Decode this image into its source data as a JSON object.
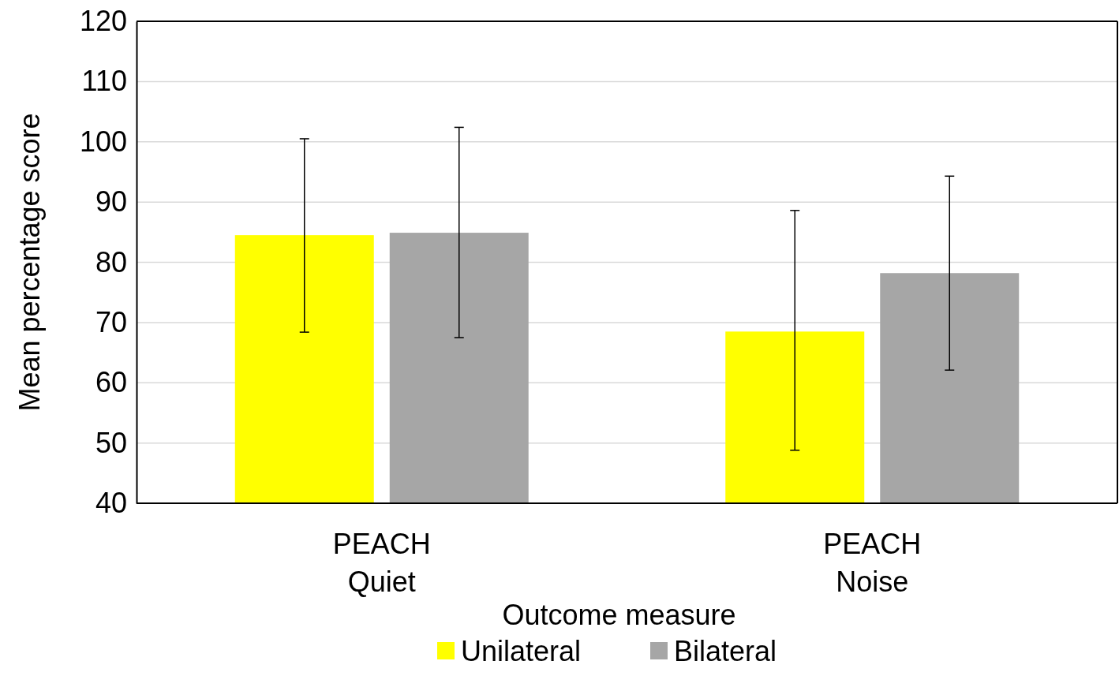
{
  "chart_data": {
    "type": "bar",
    "xlabel": "Outcome measure",
    "ylabel": "Mean percentage score",
    "categories": [
      "PEACH Quiet",
      "PEACH Noise"
    ],
    "series": [
      {
        "name": "Unilateral",
        "color": "#ffff00",
        "values": [
          84.5,
          68.5
        ],
        "errors": [
          [
            68.4,
            100.5
          ],
          [
            48.8,
            88.6
          ]
        ]
      },
      {
        "name": "Bilateral",
        "color": "#a6a6a6",
        "values": [
          84.9,
          78.2
        ],
        "errors": [
          [
            67.5,
            102.4
          ],
          [
            62.1,
            94.3
          ]
        ]
      }
    ],
    "ylim": [
      40,
      120
    ],
    "yticks": [
      40,
      50,
      60,
      70,
      80,
      90,
      100,
      110,
      120
    ],
    "grid": "y",
    "legend": "bottom"
  }
}
